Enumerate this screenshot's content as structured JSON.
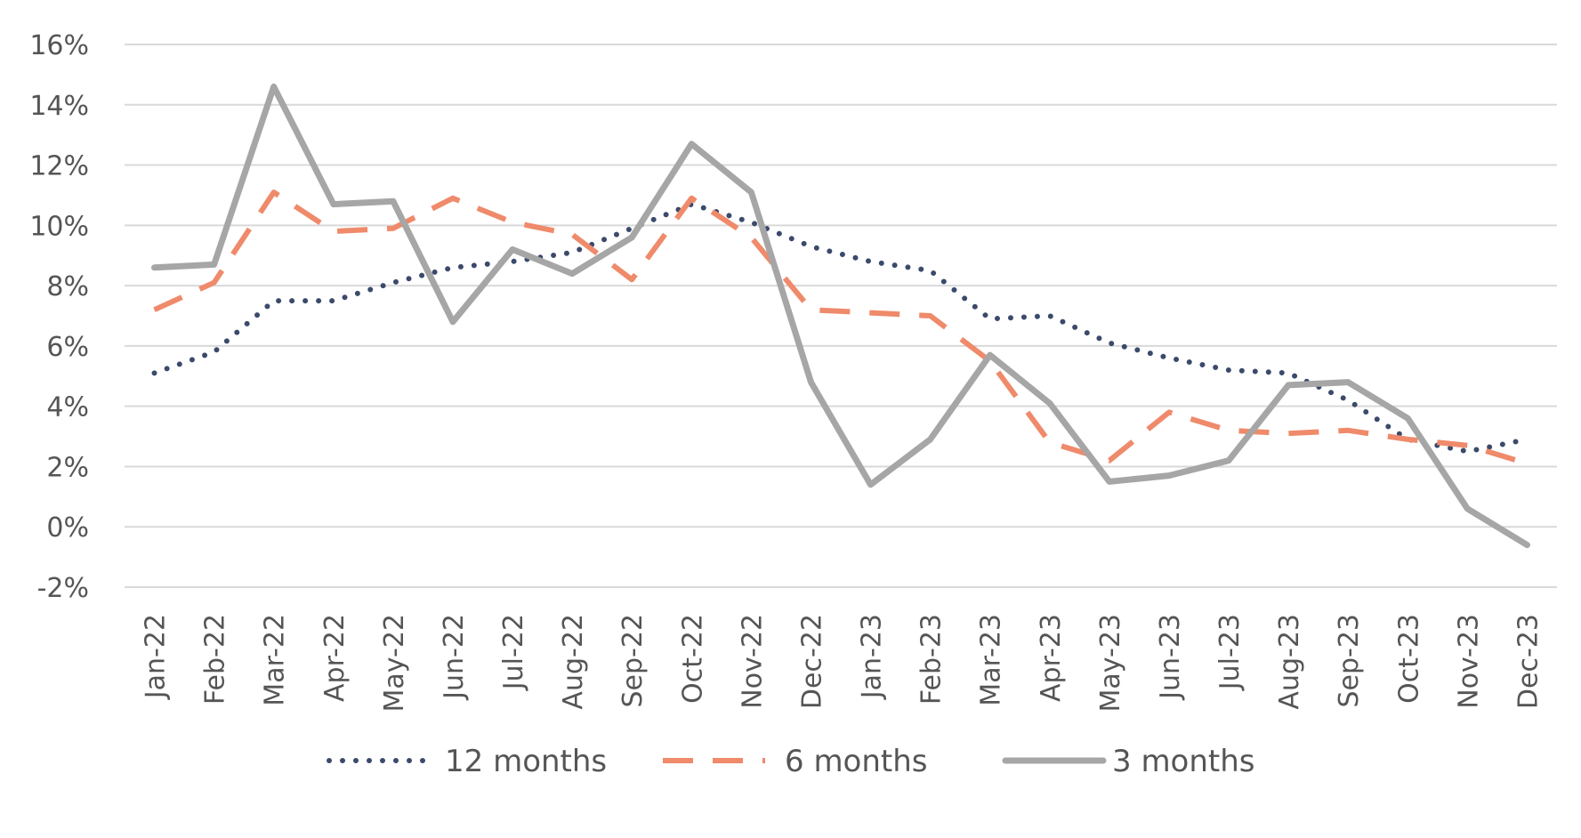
{
  "chart_data": {
    "type": "line",
    "title": "",
    "xlabel": "",
    "ylabel": "",
    "categories": [
      "Jan-22",
      "Feb-22",
      "Mar-22",
      "Apr-22",
      "May-22",
      "Jun-22",
      "Jul-22",
      "Aug-22",
      "Sep-22",
      "Oct-22",
      "Nov-22",
      "Dec-22",
      "Jan-23",
      "Feb-23",
      "Mar-23",
      "Apr-23",
      "May-23",
      "Jun-23",
      "Jul-23",
      "Aug-23",
      "Sep-23",
      "Oct-23",
      "Nov-23",
      "Dec-23"
    ],
    "ylim": [
      -2,
      16
    ],
    "yticks": [
      -2,
      0,
      2,
      4,
      6,
      8,
      10,
      12,
      14,
      16
    ],
    "ytick_labels": [
      "-2%",
      "0%",
      "2%",
      "4%",
      "6%",
      "8%",
      "10%",
      "12%",
      "14%",
      "16%"
    ],
    "grid": "horizontal",
    "legend_position": "bottom",
    "series": [
      {
        "name": "12 months",
        "style": "dotted",
        "color": "#3b4a6b",
        "values": [
          5.1,
          5.8,
          7.5,
          7.5,
          8.1,
          8.6,
          8.8,
          9.1,
          9.9,
          10.7,
          10.1,
          9.3,
          8.8,
          8.5,
          6.9,
          7.0,
          6.1,
          5.6,
          5.2,
          5.1,
          4.2,
          2.9,
          2.5,
          2.9
        ]
      },
      {
        "name": "6 months",
        "style": "dashed",
        "color": "#ef8a6b",
        "values": [
          7.2,
          8.1,
          11.1,
          9.8,
          9.9,
          10.9,
          10.1,
          9.7,
          8.2,
          10.9,
          9.6,
          7.2,
          7.1,
          7.0,
          5.5,
          2.8,
          2.2,
          3.8,
          3.2,
          3.1,
          3.2,
          2.9,
          2.7,
          2.1
        ]
      },
      {
        "name": "3 months",
        "style": "solid",
        "color": "#a6a6a6",
        "values": [
          8.6,
          8.7,
          14.6,
          10.7,
          10.8,
          6.8,
          9.2,
          8.4,
          9.6,
          12.7,
          11.1,
          4.8,
          1.4,
          2.9,
          5.7,
          4.1,
          1.5,
          1.7,
          2.2,
          4.7,
          4.8,
          3.6,
          0.6,
          -0.6
        ]
      }
    ]
  }
}
